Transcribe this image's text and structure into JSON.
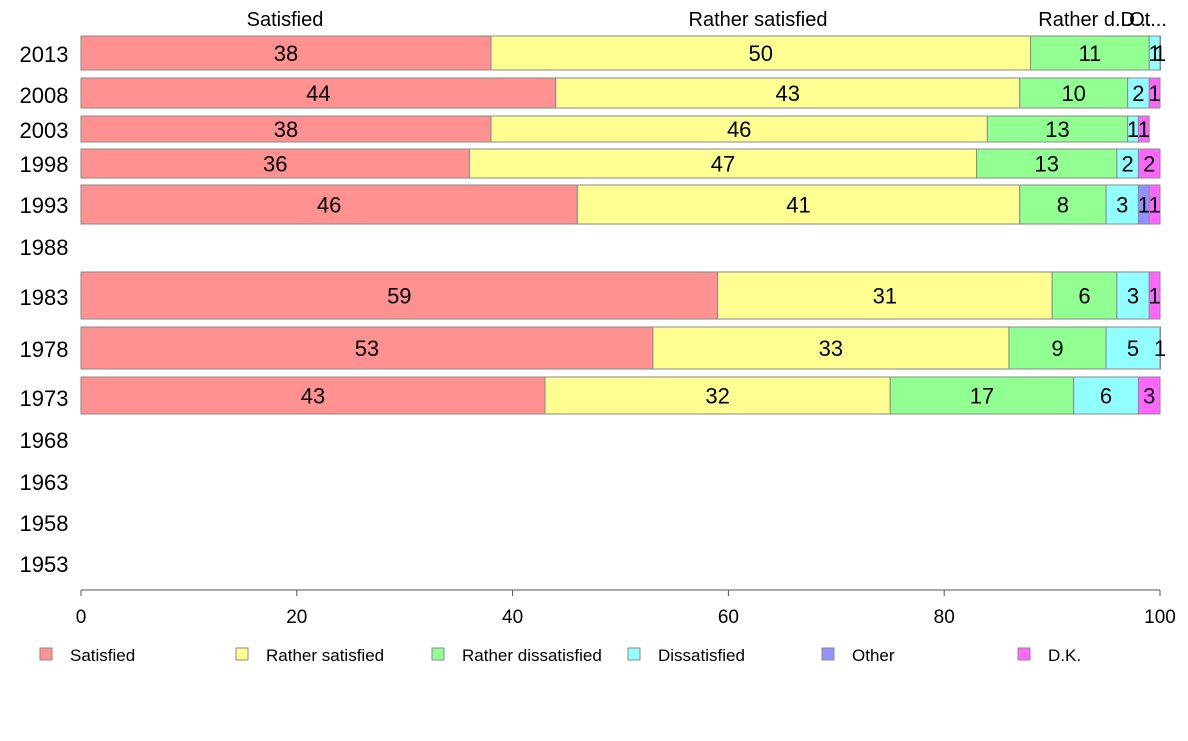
{
  "chart_data": {
    "type": "bar",
    "orientation": "horizontal",
    "stacked": true,
    "categories": [
      "2013",
      "2008",
      "2003",
      "1998",
      "1993",
      "1988",
      "1983",
      "1978",
      "1973",
      "1968",
      "1963",
      "1958",
      "1953"
    ],
    "series": [
      {
        "name": "Satisfied",
        "color": "#ff9191",
        "values": [
          38,
          44,
          38,
          36,
          46,
          null,
          59,
          53,
          43,
          null,
          null,
          null,
          null
        ]
      },
      {
        "name": "Rather satisfied",
        "color": "#ffff91",
        "values": [
          50,
          43,
          46,
          47,
          41,
          null,
          31,
          33,
          32,
          null,
          null,
          null,
          null
        ]
      },
      {
        "name": "Rather dissatisfied",
        "color": "#91ff91",
        "values": [
          11,
          10,
          13,
          13,
          8,
          null,
          6,
          9,
          17,
          null,
          null,
          null,
          null
        ]
      },
      {
        "name": "Dissatisfied",
        "color": "#91ffff",
        "values": [
          1,
          2,
          1,
          2,
          3,
          null,
          3,
          5,
          6,
          null,
          null,
          null,
          null
        ]
      },
      {
        "name": "Other",
        "color": "#9191ff",
        "values": [
          0,
          0,
          0,
          0,
          1,
          null,
          0,
          0,
          0,
          null,
          null,
          null,
          null
        ]
      },
      {
        "name": "D.K.",
        "color": "#ff66ff",
        "values": [
          1,
          1,
          1,
          2,
          1,
          null,
          1,
          1,
          3,
          null,
          null,
          null,
          null
        ]
      }
    ],
    "top_labels": [
      "Satisfied",
      "Rather satisfied",
      "Rather d...",
      "D...",
      "Ot..."
    ],
    "xlim": [
      0,
      100
    ],
    "xticks": [
      "0",
      "20",
      "40",
      "60",
      "80",
      "100"
    ],
    "grid": false,
    "legend_position": "bottom"
  }
}
